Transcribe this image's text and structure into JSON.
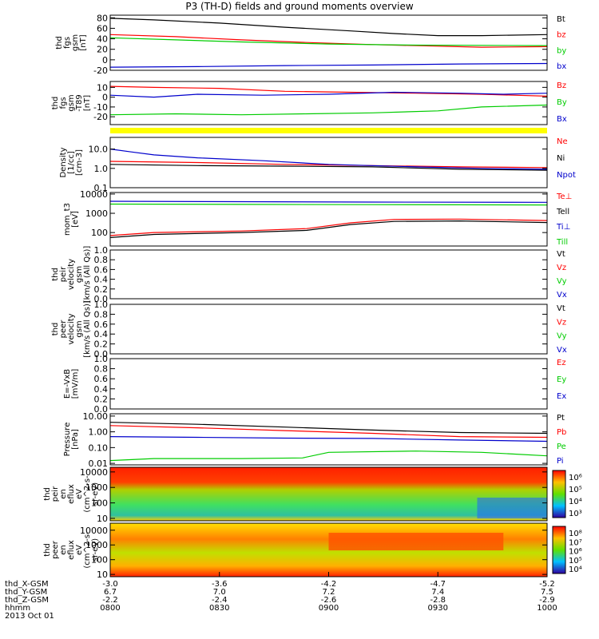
{
  "title": "P3 (TH-D) fields and ground moments overview",
  "chart_data": {
    "type": "line",
    "panels": [
      {
        "id": "fgs-gsm",
        "ylabel": [
          "thd",
          "fgs",
          "gsm",
          "[nT]"
        ],
        "ylim": [
          -20,
          85
        ],
        "yticks": [
          80,
          60,
          40,
          20,
          0,
          -20
        ],
        "ytick_labels": [
          "80",
          "60",
          "40",
          "20",
          "0",
          "-20"
        ],
        "series": [
          {
            "name": "Bt",
            "color": "#000000",
            "x": [
              0,
              0.1,
              0.25,
              0.4,
              0.55,
              0.65,
              0.75,
              0.85,
              1.0
            ],
            "y": [
              79,
              76,
              70,
              62,
              55,
              50,
              46,
              46,
              48
            ]
          },
          {
            "name": "bz",
            "color": "#ff0000",
            "x": [
              0,
              0.15,
              0.3,
              0.45,
              0.6,
              0.75,
              0.85,
              1.0
            ],
            "y": [
              48,
              44,
              38,
              33,
              29,
              26,
              24,
              25
            ]
          },
          {
            "name": "by",
            "color": "#00cc00",
            "x": [
              0,
              0.15,
              0.3,
              0.5,
              0.7,
              1.0
            ],
            "y": [
              42,
              38,
              34,
              30,
              28,
              27
            ]
          },
          {
            "name": "bx",
            "color": "#0000cc",
            "x": [
              0,
              0.2,
              0.4,
              0.6,
              0.8,
              1.0
            ],
            "y": [
              -14,
              -13,
              -11,
              -10,
              -8,
              -7
            ]
          }
        ]
      },
      {
        "id": "fgs-gsm-db",
        "ylabel": [
          "thd",
          "fgs",
          "gsm",
          "-T89",
          "[nT]"
        ],
        "ylim": [
          -28,
          16
        ],
        "yticks": [
          10,
          0,
          -10,
          -20
        ],
        "ytick_labels": [
          "10",
          "0",
          "-10",
          "-20"
        ],
        "series": [
          {
            "name": "Bz",
            "color": "#ff0000",
            "x": [
              0,
              0.1,
              0.25,
              0.4,
              0.55,
              0.7,
              0.85,
              1.0
            ],
            "y": [
              11,
              10,
              9,
              6,
              5,
              4,
              3,
              1
            ]
          },
          {
            "name": "By",
            "color": "#00cc00",
            "x": [
              0,
              0.15,
              0.3,
              0.45,
              0.6,
              0.75,
              0.85,
              1.0
            ],
            "y": [
              -18,
              -17,
              -18,
              -17,
              -16,
              -14,
              -10,
              -8
            ]
          },
          {
            "name": "Bx",
            "color": "#0000cc",
            "x": [
              0,
              0.1,
              0.2,
              0.35,
              0.5,
              0.65,
              0.8,
              0.9,
              1.0
            ],
            "y": [
              2,
              0,
              3,
              2,
              3,
              5,
              4,
              3,
              4
            ]
          }
        ]
      },
      {
        "id": "density",
        "ylabel": [
          "Density",
          "[1/cc]",
          "[cm-3]"
        ],
        "scale": "log",
        "ylim": [
          0.1,
          40
        ],
        "yticks": [
          10,
          1,
          0.1
        ],
        "ytick_labels": [
          "10.0",
          "1.0",
          "0.1"
        ],
        "series": [
          {
            "name": "Ne",
            "color": "#ff0000",
            "x": [
              0,
              0.2,
              0.4,
              0.6,
              0.8,
              1.0
            ],
            "y": [
              2.3,
              2.0,
              1.6,
              1.4,
              1.2,
              1.1
            ]
          },
          {
            "name": "Ni",
            "color": "#000000",
            "x": [
              0,
              0.2,
              0.4,
              0.6,
              0.8,
              1.0
            ],
            "y": [
              1.6,
              1.4,
              1.3,
              1.2,
              0.9,
              0.8
            ]
          },
          {
            "name": "Npot",
            "color": "#0000cc",
            "x": [
              0,
              0.05,
              0.1,
              0.2,
              0.35,
              0.5,
              0.7,
              0.85,
              1.0
            ],
            "y": [
              10,
              7,
              5,
              3.5,
              2.5,
              1.6,
              1.2,
              1.0,
              0.9
            ]
          }
        ]
      },
      {
        "id": "temperature",
        "ylabel": [
          "mom_t3",
          "[eV]"
        ],
        "scale": "log",
        "ylim": [
          20,
          12000
        ],
        "yticks": [
          10000,
          1000,
          100
        ],
        "ytick_labels": [
          "10000",
          "1000",
          "100"
        ],
        "series": [
          {
            "name": "Te⊥",
            "color": "#ff0000",
            "x": [
              0,
              0.1,
              0.3,
              0.45,
              0.55,
              0.65,
              0.8,
              1.0
            ],
            "y": [
              70,
              100,
              120,
              160,
              320,
              480,
              500,
              420
            ]
          },
          {
            "name": "Tell",
            "color": "#000000",
            "x": [
              0,
              0.1,
              0.3,
              0.45,
              0.55,
              0.65,
              0.8,
              1.0
            ],
            "y": [
              55,
              80,
              100,
              130,
              260,
              380,
              400,
              330
            ]
          },
          {
            "name": "Ti⊥",
            "color": "#0000cc",
            "x": [
              0,
              0.3,
              0.6,
              1.0
            ],
            "y": [
              4200,
              4000,
              3800,
              3700
            ]
          },
          {
            "name": "Till",
            "color": "#00cc00",
            "x": [
              0,
              0.3,
              0.6,
              1.0
            ],
            "y": [
              3000,
              2900,
              2800,
              2700
            ]
          }
        ]
      },
      {
        "id": "peir-velocity",
        "ylabel": [
          "thd",
          "peir",
          "velocity",
          "gsm",
          "[km/s (All Qs)]"
        ],
        "ylim": [
          0,
          1
        ],
        "yticks": [
          1,
          0.8,
          0.6,
          0.4,
          0.2,
          0
        ],
        "ytick_labels": [
          "1.0",
          "0.8",
          "0.6",
          "0.4",
          "0.2",
          "0.0"
        ],
        "series": [
          {
            "name": "Vt",
            "color": "#000000",
            "x": [],
            "y": []
          },
          {
            "name": "Vz",
            "color": "#ff0000",
            "x": [],
            "y": []
          },
          {
            "name": "Vy",
            "color": "#00cc00",
            "x": [],
            "y": []
          },
          {
            "name": "Vx",
            "color": "#0000cc",
            "x": [],
            "y": []
          }
        ]
      },
      {
        "id": "peer-velocity",
        "ylabel": [
          "thd",
          "peer",
          "velocity",
          "gsm",
          "[km/s (All Qs)]"
        ],
        "ylim": [
          0,
          1
        ],
        "yticks": [
          1,
          0.8,
          0.6,
          0.4,
          0.2,
          0
        ],
        "ytick_labels": [
          "1.0",
          "0.8",
          "0.6",
          "0.4",
          "0.2",
          "0.0"
        ],
        "series": [
          {
            "name": "Vt",
            "color": "#000000",
            "x": [],
            "y": []
          },
          {
            "name": "Vz",
            "color": "#ff0000",
            "x": [],
            "y": []
          },
          {
            "name": "Vy",
            "color": "#00cc00",
            "x": [],
            "y": []
          },
          {
            "name": "Vx",
            "color": "#0000cc",
            "x": [],
            "y": []
          }
        ]
      },
      {
        "id": "exb",
        "ylabel": [
          "E=-VxB",
          "[mV/m]"
        ],
        "ylim": [
          0,
          1
        ],
        "yticks": [
          1,
          0.8,
          0.6,
          0.4,
          0.2,
          0
        ],
        "ytick_labels": [
          "1.0",
          "0.8",
          "0.6",
          "0.4",
          "0.2",
          "0.0"
        ],
        "series": [
          {
            "name": "Ez",
            "color": "#ff0000",
            "x": [],
            "y": []
          },
          {
            "name": "Ey",
            "color": "#00cc00",
            "x": [],
            "y": []
          },
          {
            "name": "Ex",
            "color": "#0000cc",
            "x": [],
            "y": []
          }
        ]
      },
      {
        "id": "pressure",
        "ylabel": [
          "Pressure",
          "[nPa]"
        ],
        "scale": "log",
        "ylim": [
          0.008,
          14
        ],
        "yticks": [
          10,
          1,
          0.1,
          0.01
        ],
        "ytick_labels": [
          "10.00",
          "1.00",
          "0.10",
          "0.01"
        ],
        "series": [
          {
            "name": "Pt",
            "color": "#000000",
            "x": [
              0,
              0.2,
              0.4,
              0.6,
              0.8,
              1.0
            ],
            "y": [
              4.0,
              3.0,
              2.0,
              1.3,
              0.9,
              0.8
            ]
          },
          {
            "name": "Pb",
            "color": "#ff0000",
            "x": [
              0,
              0.2,
              0.4,
              0.6,
              0.8,
              1.0
            ],
            "y": [
              2.5,
              1.8,
              1.2,
              0.8,
              0.5,
              0.45
            ]
          },
          {
            "name": "Pe",
            "color": "#00cc00",
            "x": [
              0,
              0.1,
              0.3,
              0.44,
              0.5,
              0.7,
              0.85,
              1.0
            ],
            "y": [
              0.015,
              0.02,
              0.02,
              0.022,
              0.05,
              0.06,
              0.05,
              0.03
            ]
          },
          {
            "name": "Pi",
            "color": "#0000cc",
            "x": [
              0,
              0.2,
              0.4,
              0.6,
              0.8,
              1.0
            ],
            "y": [
              0.5,
              0.45,
              0.4,
              0.38,
              0.3,
              0.25
            ]
          }
        ]
      },
      {
        "id": "peir-en-eflux",
        "type": "heatmap",
        "ylabel": [
          "thd",
          "peir",
          "en",
          "eflux",
          "eV",
          "(cm^2-s-",
          "sr-eV)"
        ],
        "scale": "log",
        "ylim": [
          7,
          20000
        ],
        "yticks": [
          10000,
          1000,
          100,
          10
        ],
        "ytick_labels": [
          "10000",
          "1000",
          "100",
          "10"
        ],
        "colorbar_ticks": [
          "10⁶",
          "10⁵",
          "10⁴",
          "10³"
        ],
        "colorbar_range": [
          1000,
          3000000
        ]
      },
      {
        "id": "peer-en-eflux",
        "type": "heatmap",
        "ylabel": [
          "thd",
          "peer",
          "en",
          "eflux",
          "eV",
          "(cm^2-s-",
          "sr-eV)"
        ],
        "scale": "log",
        "ylim": [
          7,
          30000
        ],
        "yticks": [
          10000,
          1000,
          100,
          10
        ],
        "ytick_labels": [
          "10000",
          "1000",
          "100",
          "10"
        ],
        "colorbar_ticks": [
          "10⁸",
          "10⁷",
          "10⁶",
          "10⁵",
          "10⁴"
        ],
        "colorbar_range": [
          5000,
          200000000
        ]
      }
    ],
    "x_axis": {
      "row_labels": [
        "thd_X-GSM",
        "thd_Y-GSM",
        "thd_Z-GSM",
        "hhmm",
        "2013 Oct 01"
      ],
      "ticks": [
        {
          "x": -3.0,
          "y": 6.7,
          "z": -2.2,
          "hhmm": "0800"
        },
        {
          "x": -3.6,
          "y": 7.0,
          "z": -2.4,
          "hhmm": "0830"
        },
        {
          "x": -4.2,
          "y": 7.2,
          "z": -2.6,
          "hhmm": "0900"
        },
        {
          "x": -4.7,
          "y": 7.4,
          "z": -2.8,
          "hhmm": "0930"
        },
        {
          "x": -5.2,
          "y": 7.5,
          "z": -2.9,
          "hhmm": "1000"
        }
      ]
    },
    "colors": {
      "black": "#000000",
      "red": "#ff0000",
      "green": "#00cc00",
      "blue": "#0000cc",
      "yellow": "#ffff00"
    }
  }
}
